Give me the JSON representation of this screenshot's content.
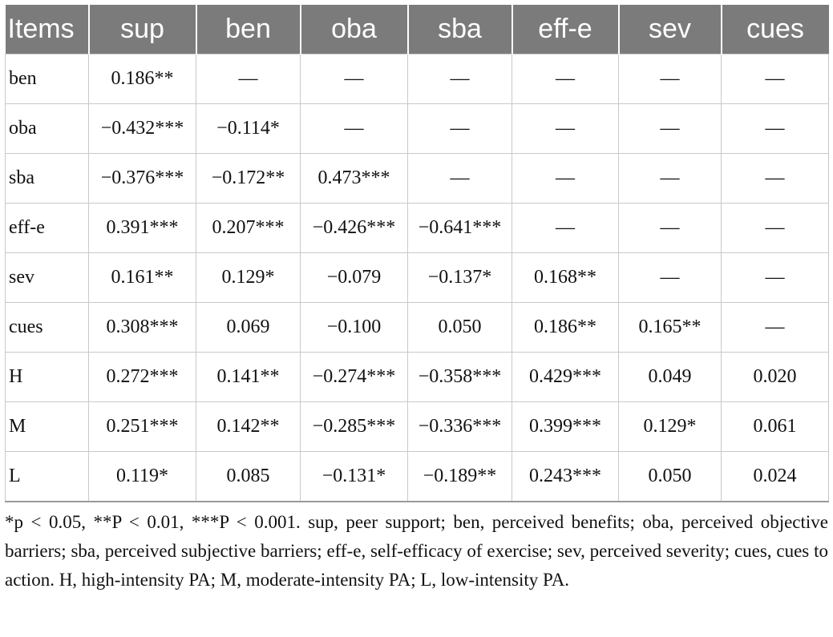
{
  "table": {
    "headers": [
      "Items",
      "sup",
      "ben",
      "oba",
      "sba",
      "eff-e",
      "sev",
      "cues"
    ],
    "rows": [
      [
        "ben",
        "0.186**",
        "—",
        "—",
        "—",
        "—",
        "—",
        "—"
      ],
      [
        "oba",
        "−0.432***",
        "−0.114*",
        "—",
        "—",
        "—",
        "—",
        "—"
      ],
      [
        "sba",
        "−0.376***",
        "−0.172**",
        "0.473***",
        "—",
        "—",
        "—",
        "—"
      ],
      [
        "eff-e",
        "0.391***",
        "0.207***",
        "−0.426***",
        "−0.641***",
        "—",
        "—",
        "—"
      ],
      [
        "sev",
        "0.161**",
        "0.129*",
        "−0.079",
        "−0.137*",
        "0.168**",
        "—",
        "—"
      ],
      [
        "cues",
        "0.308***",
        "0.069",
        "−0.100",
        "0.050",
        "0.186**",
        "0.165**",
        "—"
      ],
      [
        "H",
        "0.272***",
        "0.141**",
        "−0.274***",
        "−0.358***",
        "0.429***",
        "0.049",
        "0.020"
      ],
      [
        "M",
        "0.251***",
        "0.142**",
        "−0.285***",
        "−0.336***",
        "0.399***",
        "0.129*",
        "0.061"
      ],
      [
        "L",
        "0.119*",
        "0.085",
        "−0.131*",
        "−0.189**",
        "0.243***",
        "0.050",
        "0.024"
      ]
    ]
  },
  "footnote": "*p < 0.05, **P < 0.01, ***P < 0.001. sup, peer support; ben, perceived benefits; oba, perceived objective barriers; sba, perceived subjective barriers; eff-e, self-efficacy of exercise; sev, perceived severity; cues, cues to action. H, high-intensity PA; M, moderate-intensity PA; L, low-intensity PA.",
  "colors": {
    "header_bg": "#7b7b7b",
    "header_text": "#ffffff",
    "grid": "#c9c9c9"
  }
}
